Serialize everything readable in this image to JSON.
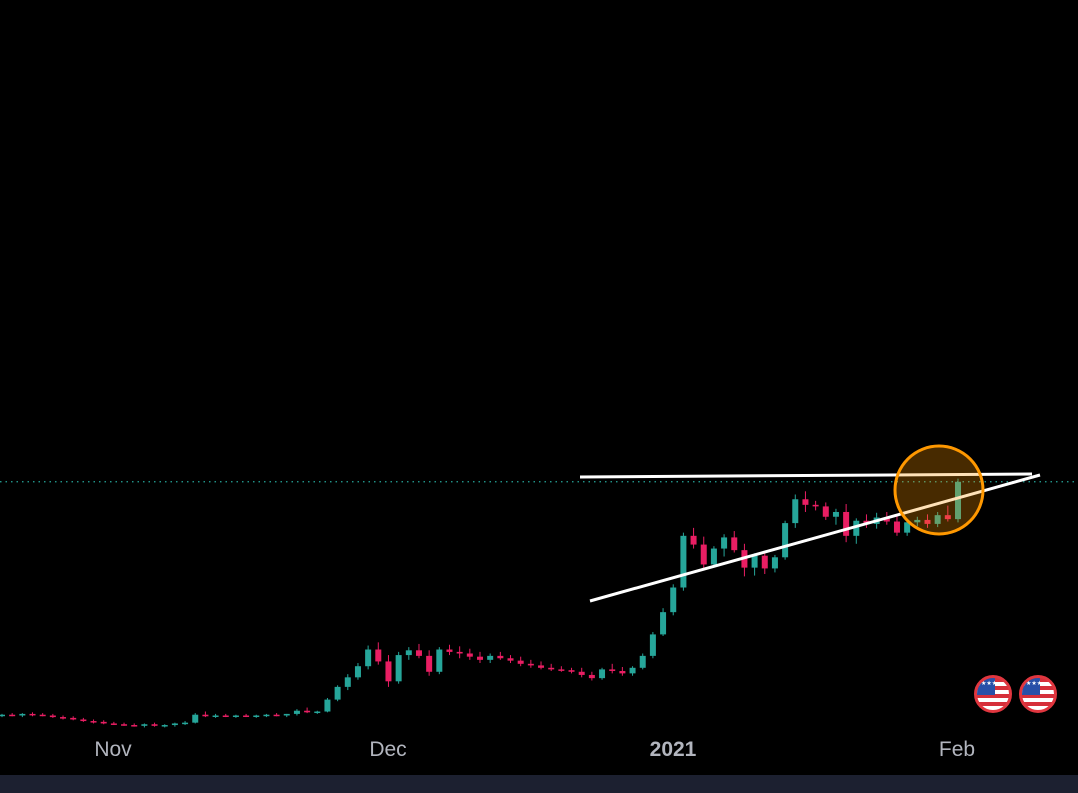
{
  "chart_data": {
    "type": "candlestick",
    "x_ticks": [
      "Nov",
      "Dec",
      "2021",
      "Feb"
    ],
    "y_range": [
      0,
      100
    ],
    "colors": {
      "up": "#26a69a",
      "down": "#e91e63",
      "background": "#000000",
      "price_line": "#26a69a",
      "trendline": "#ffffff",
      "highlight": "#ff9800",
      "text": "#b2b5be"
    },
    "candles": [
      [
        10.0,
        10.2,
        9.8,
        10.1
      ],
      [
        10.1,
        10.3,
        9.9,
        10.0
      ],
      [
        10.0,
        10.3,
        9.8,
        10.2
      ],
      [
        10.2,
        10.4,
        9.9,
        10.1
      ],
      [
        10.1,
        10.3,
        9.9,
        10.0
      ],
      [
        10.0,
        10.2,
        9.7,
        9.8
      ],
      [
        9.8,
        10.0,
        9.5,
        9.7
      ],
      [
        9.7,
        9.9,
        9.4,
        9.5
      ],
      [
        9.5,
        9.7,
        9.2,
        9.3
      ],
      [
        9.3,
        9.5,
        9.0,
        9.2
      ],
      [
        9.2,
        9.4,
        8.9,
        9.0
      ],
      [
        9.0,
        9.2,
        8.8,
        8.9
      ],
      [
        8.9,
        9.1,
        8.7,
        8.8
      ],
      [
        8.8,
        9.0,
        8.6,
        8.7
      ],
      [
        8.7,
        9.0,
        8.5,
        8.9
      ],
      [
        8.9,
        9.1,
        8.6,
        8.7
      ],
      [
        8.7,
        8.9,
        8.5,
        8.8
      ],
      [
        8.8,
        9.1,
        8.6,
        9.0
      ],
      [
        9.0,
        9.3,
        8.8,
        9.1
      ],
      [
        9.1,
        10.3,
        9.0,
        10.1
      ],
      [
        10.1,
        10.5,
        9.8,
        9.9
      ],
      [
        9.9,
        10.2,
        9.7,
        10.0
      ],
      [
        10.0,
        10.2,
        9.8,
        9.9
      ],
      [
        9.9,
        10.1,
        9.7,
        10.0
      ],
      [
        10.0,
        10.2,
        9.8,
        9.9
      ],
      [
        9.9,
        10.1,
        9.7,
        10.0
      ],
      [
        10.0,
        10.2,
        9.8,
        10.1
      ],
      [
        10.1,
        10.3,
        9.9,
        10.0
      ],
      [
        10.0,
        10.2,
        9.8,
        10.2
      ],
      [
        10.2,
        10.8,
        10.0,
        10.6
      ],
      [
        10.6,
        11.0,
        10.3,
        10.4
      ],
      [
        10.4,
        10.6,
        10.2,
        10.5
      ],
      [
        10.5,
        12.2,
        10.4,
        12.0
      ],
      [
        12.0,
        13.8,
        11.8,
        13.6
      ],
      [
        13.6,
        15.2,
        13.2,
        14.8
      ],
      [
        14.8,
        16.6,
        14.5,
        16.2
      ],
      [
        16.2,
        18.8,
        15.8,
        18.3
      ],
      [
        18.3,
        19.2,
        16.4,
        16.8
      ],
      [
        16.8,
        17.6,
        13.6,
        14.3
      ],
      [
        14.3,
        18.0,
        14.0,
        17.6
      ],
      [
        17.6,
        18.6,
        17.0,
        18.2
      ],
      [
        18.2,
        19.0,
        17.2,
        17.5
      ],
      [
        17.5,
        18.2,
        15.0,
        15.5
      ],
      [
        15.5,
        18.6,
        15.2,
        18.3
      ],
      [
        18.3,
        18.9,
        17.6,
        18.0
      ],
      [
        18.0,
        18.7,
        17.2,
        17.8
      ],
      [
        17.8,
        18.4,
        17.0,
        17.4
      ],
      [
        17.4,
        18.0,
        16.6,
        17.0
      ],
      [
        17.0,
        17.8,
        16.6,
        17.5
      ],
      [
        17.5,
        18.0,
        17.0,
        17.2
      ],
      [
        17.2,
        17.6,
        16.6,
        16.9
      ],
      [
        16.9,
        17.4,
        16.2,
        16.5
      ],
      [
        16.5,
        17.0,
        16.0,
        16.3
      ],
      [
        16.3,
        16.8,
        15.8,
        16.0
      ],
      [
        16.0,
        16.5,
        15.6,
        15.8
      ],
      [
        15.8,
        16.2,
        15.5,
        15.7
      ],
      [
        15.7,
        16.0,
        15.3,
        15.5
      ],
      [
        15.5,
        16.0,
        14.8,
        15.1
      ],
      [
        15.1,
        15.5,
        14.4,
        14.7
      ],
      [
        14.7,
        16.0,
        14.5,
        15.8
      ],
      [
        15.8,
        16.5,
        15.3,
        15.6
      ],
      [
        15.6,
        16.1,
        15.0,
        15.3
      ],
      [
        15.3,
        16.2,
        15.0,
        16.0
      ],
      [
        16.0,
        17.8,
        15.8,
        17.5
      ],
      [
        17.5,
        20.5,
        17.2,
        20.2
      ],
      [
        20.2,
        23.5,
        20.0,
        23.0
      ],
      [
        23.0,
        26.5,
        22.6,
        26.1
      ],
      [
        26.1,
        33.0,
        25.7,
        32.6
      ],
      [
        32.6,
        33.6,
        31.0,
        31.5
      ],
      [
        31.5,
        32.5,
        28.4,
        29.0
      ],
      [
        29.0,
        31.3,
        28.6,
        31.0
      ],
      [
        31.0,
        32.8,
        30.0,
        32.4
      ],
      [
        32.4,
        33.2,
        30.5,
        30.8
      ],
      [
        30.8,
        31.6,
        27.5,
        28.6
      ],
      [
        28.6,
        30.4,
        27.6,
        30.1
      ],
      [
        30.1,
        30.7,
        27.8,
        28.5
      ],
      [
        28.5,
        30.2,
        28.0,
        29.9
      ],
      [
        29.9,
        34.5,
        29.6,
        34.2
      ],
      [
        34.2,
        37.8,
        33.6,
        37.2
      ],
      [
        37.2,
        38.2,
        35.6,
        36.5
      ],
      [
        36.5,
        37.0,
        35.8,
        36.3
      ],
      [
        36.3,
        36.8,
        34.6,
        35.0
      ],
      [
        35.0,
        36.0,
        34.0,
        35.6
      ],
      [
        35.6,
        36.6,
        31.8,
        32.6
      ],
      [
        32.6,
        34.8,
        31.6,
        34.5
      ],
      [
        34.5,
        35.3,
        33.6,
        34.1
      ],
      [
        34.1,
        35.5,
        33.5,
        34.9
      ],
      [
        34.9,
        35.6,
        34.0,
        34.4
      ],
      [
        34.4,
        35.2,
        32.6,
        33.0
      ],
      [
        33.0,
        34.6,
        32.6,
        34.3
      ],
      [
        34.3,
        35.0,
        33.8,
        34.6
      ],
      [
        34.6,
        35.3,
        33.6,
        34.1
      ],
      [
        34.1,
        35.6,
        33.7,
        35.2
      ],
      [
        35.2,
        36.4,
        34.4,
        34.7
      ],
      [
        34.7,
        39.8,
        34.3,
        39.4
      ]
    ]
  },
  "time_axis": {
    "labels": [
      "Nov",
      "Dec",
      "2021",
      "Feb"
    ]
  },
  "markers": {
    "flag_text": "★★★"
  }
}
